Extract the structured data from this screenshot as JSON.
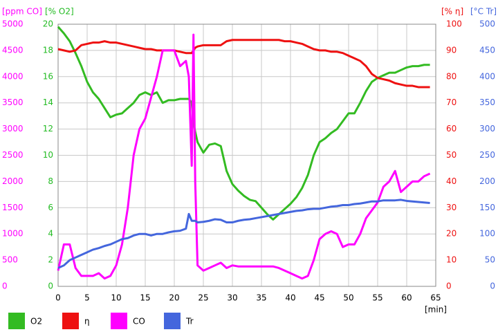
{
  "chart_data": {
    "type": "line",
    "x_label": "[min]",
    "xlim": [
      0,
      65
    ],
    "xticks": [
      0,
      5,
      10,
      15,
      20,
      25,
      30,
      35,
      40,
      45,
      50,
      55,
      60,
      65
    ],
    "grid": true,
    "y_axes": [
      {
        "label": "[ppm CO]",
        "color": "#ff00ff",
        "side": "left",
        "lim": [
          0,
          5000
        ],
        "ticks": [
          0,
          500,
          1000,
          1500,
          2000,
          2500,
          3000,
          3500,
          4000,
          4500,
          5000
        ]
      },
      {
        "label": "[% O2]",
        "color": "#22bb22",
        "side": "left",
        "lim": [
          0,
          20
        ],
        "ticks": [
          0,
          2,
          4,
          6,
          8,
          10,
          12,
          14,
          16,
          18,
          20
        ]
      },
      {
        "label": "[% η]",
        "color": "#ee1111",
        "side": "right",
        "lim": [
          0,
          100
        ],
        "ticks": [
          0,
          10,
          20,
          30,
          40,
          50,
          60,
          70,
          80,
          90,
          100
        ]
      },
      {
        "label": "[°C Tr]",
        "color": "#4466dd",
        "side": "right",
        "lim": [
          0,
          500
        ],
        "ticks": [
          0,
          50,
          100,
          150,
          200,
          250,
          300,
          350,
          400,
          450,
          500
        ]
      }
    ],
    "x": [
      0,
      1,
      2,
      3,
      4,
      5,
      6,
      7,
      8,
      9,
      10,
      11,
      12,
      13,
      14,
      15,
      16,
      17,
      18,
      19,
      20,
      21,
      22,
      22.5,
      23,
      23.3,
      23.6,
      24,
      25,
      26,
      27,
      28,
      29,
      30,
      31,
      32,
      33,
      34,
      35,
      36,
      37,
      38,
      39,
      40,
      41,
      42,
      43,
      44,
      45,
      46,
      47,
      48,
      49,
      50,
      51,
      52,
      53,
      54,
      55,
      56,
      57,
      58,
      59,
      60,
      61,
      62,
      63,
      64
    ],
    "series": [
      {
        "name": "O2",
        "color": "#33bb22",
        "axis": 1,
        "values": [
          19.8,
          19.3,
          18.7,
          17.8,
          16.8,
          15.6,
          14.8,
          14.3,
          13.6,
          12.9,
          13.1,
          13.2,
          13.6,
          14.0,
          14.6,
          14.8,
          14.6,
          14.8,
          14.0,
          14.2,
          14.2,
          14.3,
          14.3,
          14.3,
          14.0,
          12.5,
          11.8,
          11.0,
          10.2,
          10.8,
          10.9,
          10.7,
          8.8,
          7.8,
          7.3,
          6.9,
          6.6,
          6.5,
          6.0,
          5.5,
          5.1,
          5.5,
          5.9,
          6.3,
          6.8,
          7.5,
          8.5,
          10.0,
          11.0,
          11.3,
          11.7,
          12.0,
          12.6,
          13.2,
          13.2,
          14.0,
          14.9,
          15.6,
          15.9,
          16.1,
          16.3,
          16.3,
          16.5,
          16.7,
          16.8,
          16.8,
          16.9,
          16.9
        ]
      },
      {
        "name": "η",
        "color": "#ee1111",
        "axis": 2,
        "values": [
          90.5,
          90,
          89.5,
          90,
          92,
          92.5,
          93,
          93,
          93.5,
          93,
          93,
          92.5,
          92,
          91.5,
          91,
          90.5,
          90.5,
          90,
          90,
          90,
          90,
          89.5,
          89,
          89,
          89,
          90,
          91,
          91.5,
          92,
          92,
          92,
          92,
          93.5,
          94,
          94,
          94,
          94,
          94,
          94,
          94,
          94,
          94,
          93.5,
          93.5,
          93,
          92.5,
          91.5,
          90.5,
          90,
          90,
          89.5,
          89.5,
          89,
          88,
          87,
          86,
          84,
          81,
          79.5,
          79,
          78.5,
          77.5,
          77,
          76.5,
          76.5,
          76,
          76,
          76
        ]
      },
      {
        "name": "CO",
        "color": "#ff00ff",
        "axis": 0,
        "values": [
          300,
          800,
          800,
          350,
          200,
          200,
          200,
          250,
          150,
          200,
          400,
          800,
          1500,
          2500,
          3000,
          3200,
          3600,
          4000,
          4500,
          4500,
          4500,
          4200,
          4300,
          4000,
          2300,
          4800,
          2000,
          400,
          300,
          350,
          400,
          450,
          350,
          400,
          380,
          380,
          380,
          380,
          380,
          380,
          380,
          350,
          300,
          250,
          200,
          150,
          200,
          500,
          900,
          1000,
          1050,
          1000,
          750,
          800,
          800,
          1000,
          1300,
          1450,
          1600,
          1900,
          2000,
          2200,
          1800,
          1900,
          2000,
          2000,
          2100,
          2150
        ]
      },
      {
        "name": "Tr",
        "color": "#4466dd",
        "axis": 3,
        "values": [
          35,
          40,
          50,
          55,
          60,
          65,
          70,
          73,
          77,
          80,
          85,
          90,
          92,
          97,
          100,
          100,
          97,
          100,
          100,
          103,
          105,
          106,
          110,
          138,
          125,
          125,
          125,
          122,
          123,
          125,
          128,
          127,
          122,
          122,
          125,
          127,
          128,
          130,
          132,
          134,
          136,
          138,
          140,
          142,
          144,
          145,
          147,
          148,
          148,
          150,
          152,
          153,
          155,
          155,
          157,
          158,
          160,
          162,
          162,
          164,
          164,
          164,
          165,
          163,
          162,
          161,
          160,
          159
        ]
      }
    ]
  }
}
